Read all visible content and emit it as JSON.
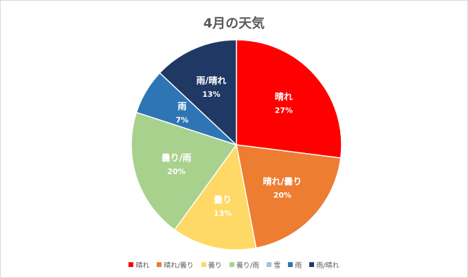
{
  "chart_data": {
    "type": "pie",
    "title": "4月の天気",
    "start_angle_deg": 0,
    "direction": "clockwise",
    "legend_position": "bottom",
    "slices": [
      {
        "label": "晴れ",
        "value": 27,
        "value_label": "27%",
        "color": "#ff0000"
      },
      {
        "label": "晴れ/曇り",
        "value": 20,
        "value_label": "20%",
        "color": "#ed7d31"
      },
      {
        "label": "曇り",
        "value": 13,
        "value_label": "13%",
        "color": "#ffd966"
      },
      {
        "label": "曇り/雨",
        "value": 20,
        "value_label": "20%",
        "color": "#a9d18e"
      },
      {
        "label": "雪",
        "value": 0,
        "value_label": "",
        "color": "#9dc3e6"
      },
      {
        "label": "雨",
        "value": 7,
        "value_label": "7%",
        "color": "#2e75b6"
      },
      {
        "label": "雨/晴れ",
        "value": 13,
        "value_label": "13%",
        "color": "#203864"
      }
    ]
  }
}
